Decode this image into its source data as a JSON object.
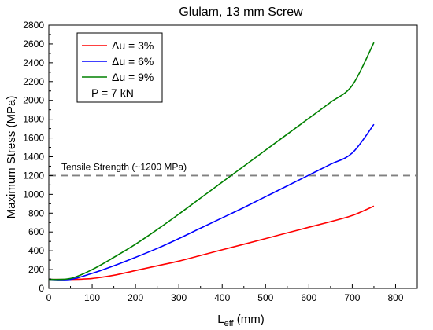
{
  "chart_data": {
    "type": "line",
    "title": "Glulam, 13 mm Screw",
    "xlabel_main": "L",
    "xlabel_sub": "eff",
    "xlabel_unit": " (mm)",
    "ylabel": "Maximum Stress (MPa)",
    "xlim": [
      0,
      850
    ],
    "ylim": [
      0,
      2800
    ],
    "xticks": [
      0,
      100,
      200,
      300,
      400,
      500,
      600,
      700,
      800
    ],
    "yticks": [
      0,
      200,
      400,
      600,
      800,
      1000,
      1200,
      1400,
      1600,
      1800,
      2000,
      2200,
      2400,
      2600,
      2800
    ],
    "x": [
      0,
      50,
      100,
      150,
      200,
      250,
      300,
      350,
      400,
      450,
      500,
      550,
      600,
      650,
      700,
      750
    ],
    "series": [
      {
        "name": "Δu = 3%",
        "color": "#ff0000",
        "values": [
          95,
          95,
          105,
          140,
          190,
          240,
          290,
          350,
          410,
          470,
          530,
          590,
          650,
          710,
          775,
          875
        ]
      },
      {
        "name": "Δu = 6%",
        "color": "#0000ff",
        "values": [
          95,
          95,
          160,
          240,
          330,
          425,
          530,
          640,
          750,
          860,
          975,
          1090,
          1205,
          1320,
          1440,
          1745
        ]
      },
      {
        "name": "Δu = 9%",
        "color": "#008000",
        "values": [
          95,
          105,
          200,
          330,
          470,
          625,
          790,
          960,
          1130,
          1300,
          1470,
          1640,
          1810,
          1980,
          2160,
          2615
        ]
      }
    ],
    "reference_line": {
      "y": 1200,
      "label": "Tensile Strength (~1200 MPa)",
      "color": "#808080"
    },
    "legend": {
      "position": "top-left",
      "note": "P = 7 kN"
    },
    "grid": false
  }
}
